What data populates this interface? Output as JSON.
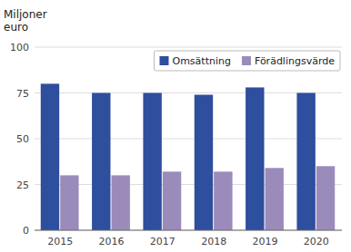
{
  "chart_data": {
    "type": "bar",
    "ylabel": [
      "Miljoner",
      "euro"
    ],
    "categories": [
      "2015",
      "2016",
      "2017",
      "2018",
      "2019",
      "2020"
    ],
    "series": [
      {
        "name": "Omsättning",
        "color": "#2E4E9E",
        "values": [
          80,
          75,
          75,
          74,
          78,
          75
        ]
      },
      {
        "name": "Förädlingsvärde",
        "color": "#9B8BBB",
        "values": [
          30,
          30,
          32,
          32,
          34,
          35
        ]
      }
    ],
    "ylim": [
      0,
      100
    ],
    "yticks": [
      0,
      25,
      50,
      75,
      100
    ],
    "grid": true,
    "legend": "top-right"
  }
}
